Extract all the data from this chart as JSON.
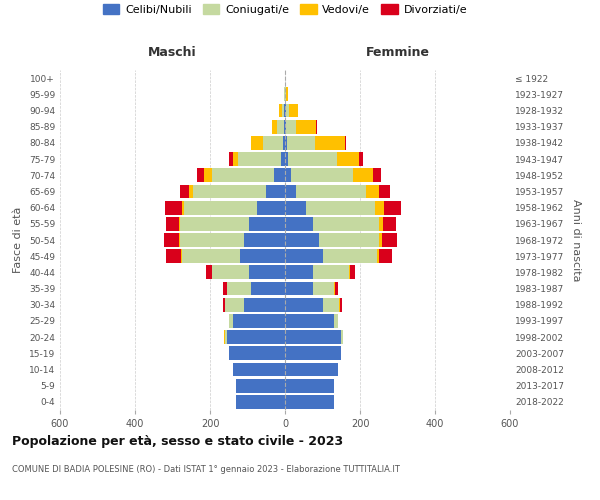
{
  "age_groups": [
    "0-4",
    "5-9",
    "10-14",
    "15-19",
    "20-24",
    "25-29",
    "30-34",
    "35-39",
    "40-44",
    "45-49",
    "50-54",
    "55-59",
    "60-64",
    "65-69",
    "70-74",
    "75-79",
    "80-84",
    "85-89",
    "90-94",
    "95-99",
    "100+"
  ],
  "birth_years": [
    "2018-2022",
    "2013-2017",
    "2008-2012",
    "2003-2007",
    "1998-2002",
    "1993-1997",
    "1988-1992",
    "1983-1987",
    "1978-1982",
    "1973-1977",
    "1968-1972",
    "1963-1967",
    "1958-1962",
    "1953-1957",
    "1948-1952",
    "1943-1947",
    "1938-1942",
    "1933-1937",
    "1928-1932",
    "1923-1927",
    "≤ 1922"
  ],
  "male": {
    "celibi": [
      130,
      130,
      140,
      150,
      155,
      140,
      110,
      90,
      95,
      120,
      110,
      95,
      75,
      50,
      30,
      10,
      5,
      3,
      2,
      0,
      0
    ],
    "coniugati": [
      0,
      0,
      0,
      0,
      5,
      10,
      50,
      65,
      100,
      155,
      170,
      185,
      195,
      195,
      165,
      115,
      55,
      18,
      5,
      2,
      0
    ],
    "vedovi": [
      0,
      0,
      0,
      0,
      3,
      0,
      0,
      0,
      0,
      2,
      2,
      3,
      5,
      10,
      20,
      15,
      30,
      15,
      10,
      2,
      0
    ],
    "divorziati": [
      0,
      0,
      0,
      0,
      0,
      0,
      5,
      10,
      15,
      40,
      40,
      35,
      45,
      25,
      20,
      10,
      0,
      0,
      0,
      0,
      0
    ]
  },
  "female": {
    "nubili": [
      130,
      130,
      140,
      150,
      150,
      130,
      100,
      75,
      75,
      100,
      90,
      75,
      55,
      30,
      15,
      8,
      4,
      3,
      2,
      0,
      0
    ],
    "coniugate": [
      0,
      0,
      0,
      0,
      5,
      10,
      45,
      55,
      95,
      145,
      160,
      175,
      185,
      185,
      165,
      130,
      75,
      25,
      8,
      2,
      0
    ],
    "vedove": [
      0,
      0,
      0,
      0,
      0,
      2,
      2,
      2,
      2,
      5,
      8,
      10,
      25,
      35,
      55,
      60,
      80,
      55,
      25,
      5,
      0
    ],
    "divorziate": [
      0,
      0,
      0,
      0,
      0,
      0,
      5,
      10,
      15,
      35,
      40,
      35,
      45,
      30,
      20,
      10,
      3,
      2,
      0,
      0,
      0
    ]
  },
  "colors": {
    "celibi": "#4472c4",
    "coniugati": "#c5d9a0",
    "vedovi": "#ffc000",
    "divorziati": "#d9001b"
  },
  "xlim": 600,
  "title": "Popolazione per età, sesso e stato civile - 2023",
  "subtitle": "COMUNE DI BADIA POLESINE (RO) - Dati ISTAT 1° gennaio 2023 - Elaborazione TUTTITALIA.IT",
  "ylabel_left": "Fasce di età",
  "ylabel_right": "Anni di nascita",
  "xlabel_maschi": "Maschi",
  "xlabel_femmine": "Femmine",
  "legend": [
    "Celibi/Nubili",
    "Coniugati/e",
    "Vedovi/e",
    "Divorziati/e"
  ],
  "bg_color": "#ffffff",
  "grid_color": "#cccccc"
}
